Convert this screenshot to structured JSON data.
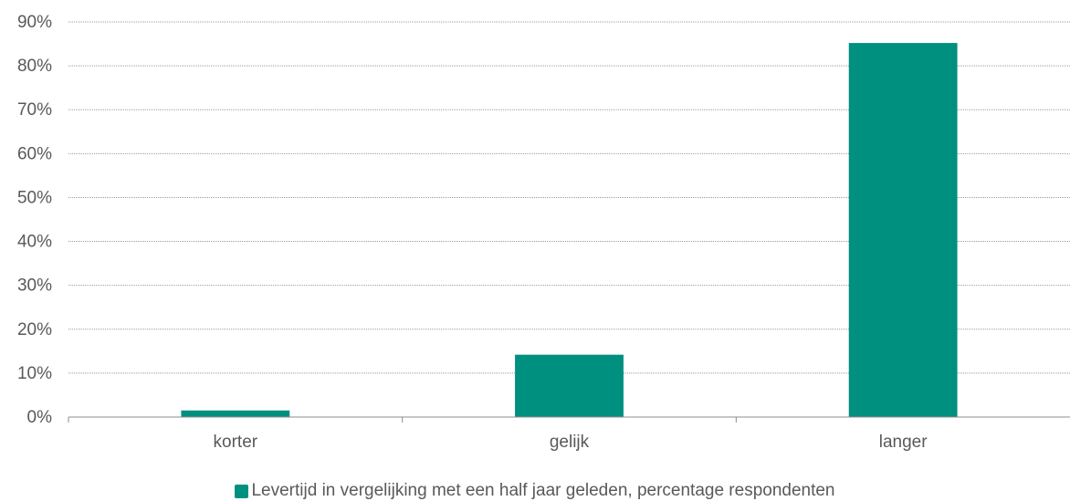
{
  "chart_data": {
    "type": "bar",
    "categories": [
      "korter",
      "gelijk",
      "langer"
    ],
    "values": [
      1.5,
      14.2,
      85.2
    ],
    "ylim": [
      0,
      90
    ],
    "yticks": [
      0,
      10,
      20,
      30,
      40,
      50,
      60,
      70,
      80,
      90
    ],
    "ytick_labels": [
      "0%",
      "10%",
      "20%",
      "30%",
      "40%",
      "50%",
      "60%",
      "70%",
      "80%",
      "90%"
    ],
    "series_name": "Levertijd in vergelijking met een half jaar geleden, percentage respondenten",
    "bar_color": "#009080",
    "grid": true,
    "legend_position": "bottom"
  }
}
